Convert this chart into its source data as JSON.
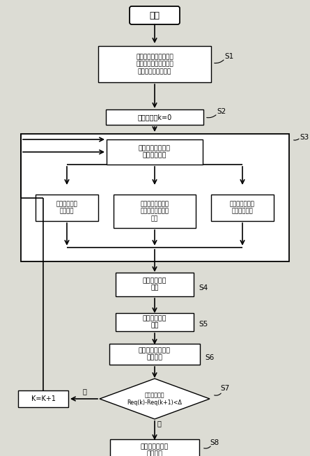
{
  "bg_color": "#dcdcd4",
  "box_color": "#ffffff",
  "box_edge": "#000000",
  "arrow_color": "#000000",
  "text_color": "#000000",
  "title_start": "开始",
  "s1_text": "利用记忆回路测量故障\n前后定子电压以及故障\n前定子电流等初始値",
  "s2_text": "置迭代次数k=0",
  "s3_top_text": "迭代计算得到定子\n磁链一般形式",
  "s3_left_text": "计算定子磁链\n稳态分量",
  "s3_mid_text": "计算定子磁链暂态\n分量的衰减和磁转\n频率",
  "s3_right_text": "计算定子磁链暂\n态分量的幅値",
  "s4_text": "计算定子短路\n电流",
  "s5_text": "计算转子短路\n电流",
  "s6_text": "计算转子回路等效\n可变电际",
  "s7_text": "迭代是否收敛\nReq(k)-Req(k+1)<Δ",
  "s7_yes": "是",
  "s7_no": "否",
  "s8_text": "计算短路后三相\n定子电流",
  "k_text": "K=K+1",
  "label_s1": "S1",
  "label_s2": "S2",
  "label_s3": "S3",
  "label_s4": "S4",
  "label_s5": "S5",
  "label_s6": "S6",
  "label_s7": "S7",
  "label_s8": "S8"
}
